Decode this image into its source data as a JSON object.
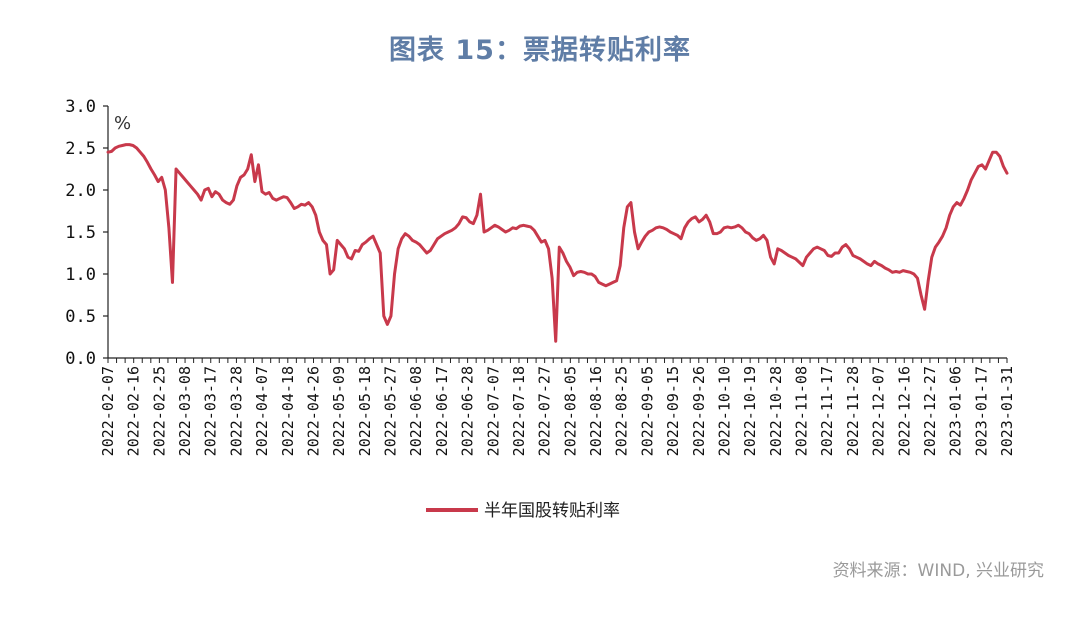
{
  "title": "图表 15：票据转贴利率",
  "source": "资料来源：WIND, 兴业研究",
  "colors": {
    "series": "#c8394b",
    "title": "#5f7da6",
    "axis": "#222222"
  },
  "chart_data": {
    "type": "line",
    "unit_label": "%",
    "ylim": [
      0,
      3.0
    ],
    "yticks": [
      "0.0",
      "0.5",
      "1.0",
      "1.5",
      "2.0",
      "2.5",
      "3.0"
    ],
    "xtick_labels": [
      "2022-02-07",
      "2022-02-16",
      "2022-02-25",
      "2022-03-08",
      "2022-03-17",
      "2022-03-28",
      "2022-04-07",
      "2022-04-18",
      "2022-04-26",
      "2022-05-09",
      "2022-05-18",
      "2022-05-27",
      "2022-06-08",
      "2022-06-17",
      "2022-06-28",
      "2022-07-07",
      "2022-07-18",
      "2022-07-27",
      "2022-08-05",
      "2022-08-16",
      "2022-08-25",
      "2022-09-05",
      "2022-09-15",
      "2022-09-26",
      "2022-10-10",
      "2022-10-19",
      "2022-10-28",
      "2022-11-08",
      "2022-11-17",
      "2022-11-28",
      "2022-12-07",
      "2022-12-16",
      "2022-12-27",
      "2023-01-06",
      "2023-01-17",
      "2023-01-31"
    ],
    "grid": false,
    "legend_position": "bottom",
    "series": [
      {
        "name": "半年国股转贴利率",
        "values": [
          2.45,
          2.46,
          2.5,
          2.52,
          2.53,
          2.54,
          2.54,
          2.53,
          2.5,
          2.45,
          2.4,
          2.33,
          2.25,
          2.18,
          2.1,
          2.15,
          2.0,
          1.55,
          0.9,
          2.25,
          2.2,
          2.15,
          2.1,
          2.05,
          2.0,
          1.95,
          1.88,
          2.0,
          2.02,
          1.92,
          1.98,
          1.95,
          1.88,
          1.85,
          1.83,
          1.88,
          2.05,
          2.15,
          2.18,
          2.25,
          2.42,
          2.1,
          2.3,
          1.98,
          1.95,
          1.97,
          1.9,
          1.88,
          1.9,
          1.92,
          1.91,
          1.85,
          1.78,
          1.8,
          1.83,
          1.82,
          1.85,
          1.8,
          1.7,
          1.5,
          1.4,
          1.35,
          1.0,
          1.05,
          1.4,
          1.35,
          1.3,
          1.2,
          1.18,
          1.28,
          1.27,
          1.35,
          1.38,
          1.42,
          1.45,
          1.35,
          1.25,
          0.5,
          0.4,
          0.5,
          1.0,
          1.3,
          1.42,
          1.48,
          1.45,
          1.4,
          1.38,
          1.35,
          1.3,
          1.25,
          1.28,
          1.35,
          1.42,
          1.45,
          1.48,
          1.5,
          1.52,
          1.55,
          1.6,
          1.68,
          1.67,
          1.62,
          1.6,
          1.7,
          1.95,
          1.5,
          1.52,
          1.55,
          1.58,
          1.56,
          1.53,
          1.5,
          1.52,
          1.55,
          1.54,
          1.57,
          1.58,
          1.57,
          1.56,
          1.52,
          1.45,
          1.38,
          1.4,
          1.3,
          0.95,
          0.2,
          1.32,
          1.25,
          1.15,
          1.08,
          0.98,
          1.02,
          1.03,
          1.02,
          1.0,
          1.0,
          0.97,
          0.9,
          0.88,
          0.86,
          0.88,
          0.9,
          0.92,
          1.1,
          1.55,
          1.8,
          1.85,
          1.5,
          1.3,
          1.38,
          1.45,
          1.5,
          1.52,
          1.55,
          1.56,
          1.55,
          1.53,
          1.5,
          1.48,
          1.46,
          1.42,
          1.55,
          1.62,
          1.66,
          1.68,
          1.62,
          1.65,
          1.7,
          1.62,
          1.48,
          1.48,
          1.5,
          1.55,
          1.56,
          1.55,
          1.56,
          1.58,
          1.55,
          1.5,
          1.48,
          1.43,
          1.4,
          1.42,
          1.46,
          1.4,
          1.2,
          1.12,
          1.3,
          1.28,
          1.25,
          1.22,
          1.2,
          1.18,
          1.14,
          1.1,
          1.2,
          1.25,
          1.3,
          1.32,
          1.3,
          1.28,
          1.22,
          1.21,
          1.25,
          1.25,
          1.32,
          1.35,
          1.3,
          1.22,
          1.2,
          1.18,
          1.15,
          1.12,
          1.1,
          1.15,
          1.12,
          1.1,
          1.07,
          1.05,
          1.02,
          1.03,
          1.02,
          1.04,
          1.03,
          1.02,
          1.0,
          0.95,
          0.75,
          0.58,
          0.92,
          1.2,
          1.32,
          1.38,
          1.45,
          1.55,
          1.7,
          1.8,
          1.85,
          1.82,
          1.9,
          2.0,
          2.12,
          2.2,
          2.28,
          2.3,
          2.25,
          2.35,
          2.45,
          2.45,
          2.4,
          2.28,
          2.2
        ]
      }
    ]
  }
}
